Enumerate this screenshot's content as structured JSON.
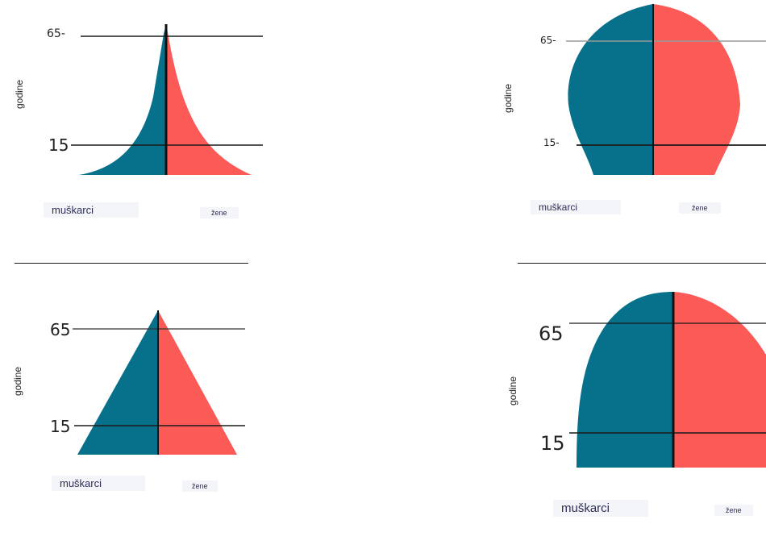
{
  "colors": {
    "male": "#07708a",
    "female": "#fb5a57",
    "axis": "#1b1b1b"
  },
  "labels": {
    "y_axis": "godine",
    "male": "muškarci",
    "female": "žene"
  },
  "pyramids": [
    {
      "id": "top-left",
      "shape": "expansive-concave",
      "ticks": [
        "65-",
        "15"
      ]
    },
    {
      "id": "top-right",
      "shape": "constrictive-rounded",
      "ticks": [
        "65-",
        "15-"
      ]
    },
    {
      "id": "bottom-left",
      "shape": "triangular",
      "ticks": [
        "65",
        "15"
      ]
    },
    {
      "id": "bottom-right",
      "shape": "stationary-dome",
      "ticks": [
        "65",
        "15"
      ]
    }
  ],
  "answer_lines": [
    "",
    ""
  ]
}
